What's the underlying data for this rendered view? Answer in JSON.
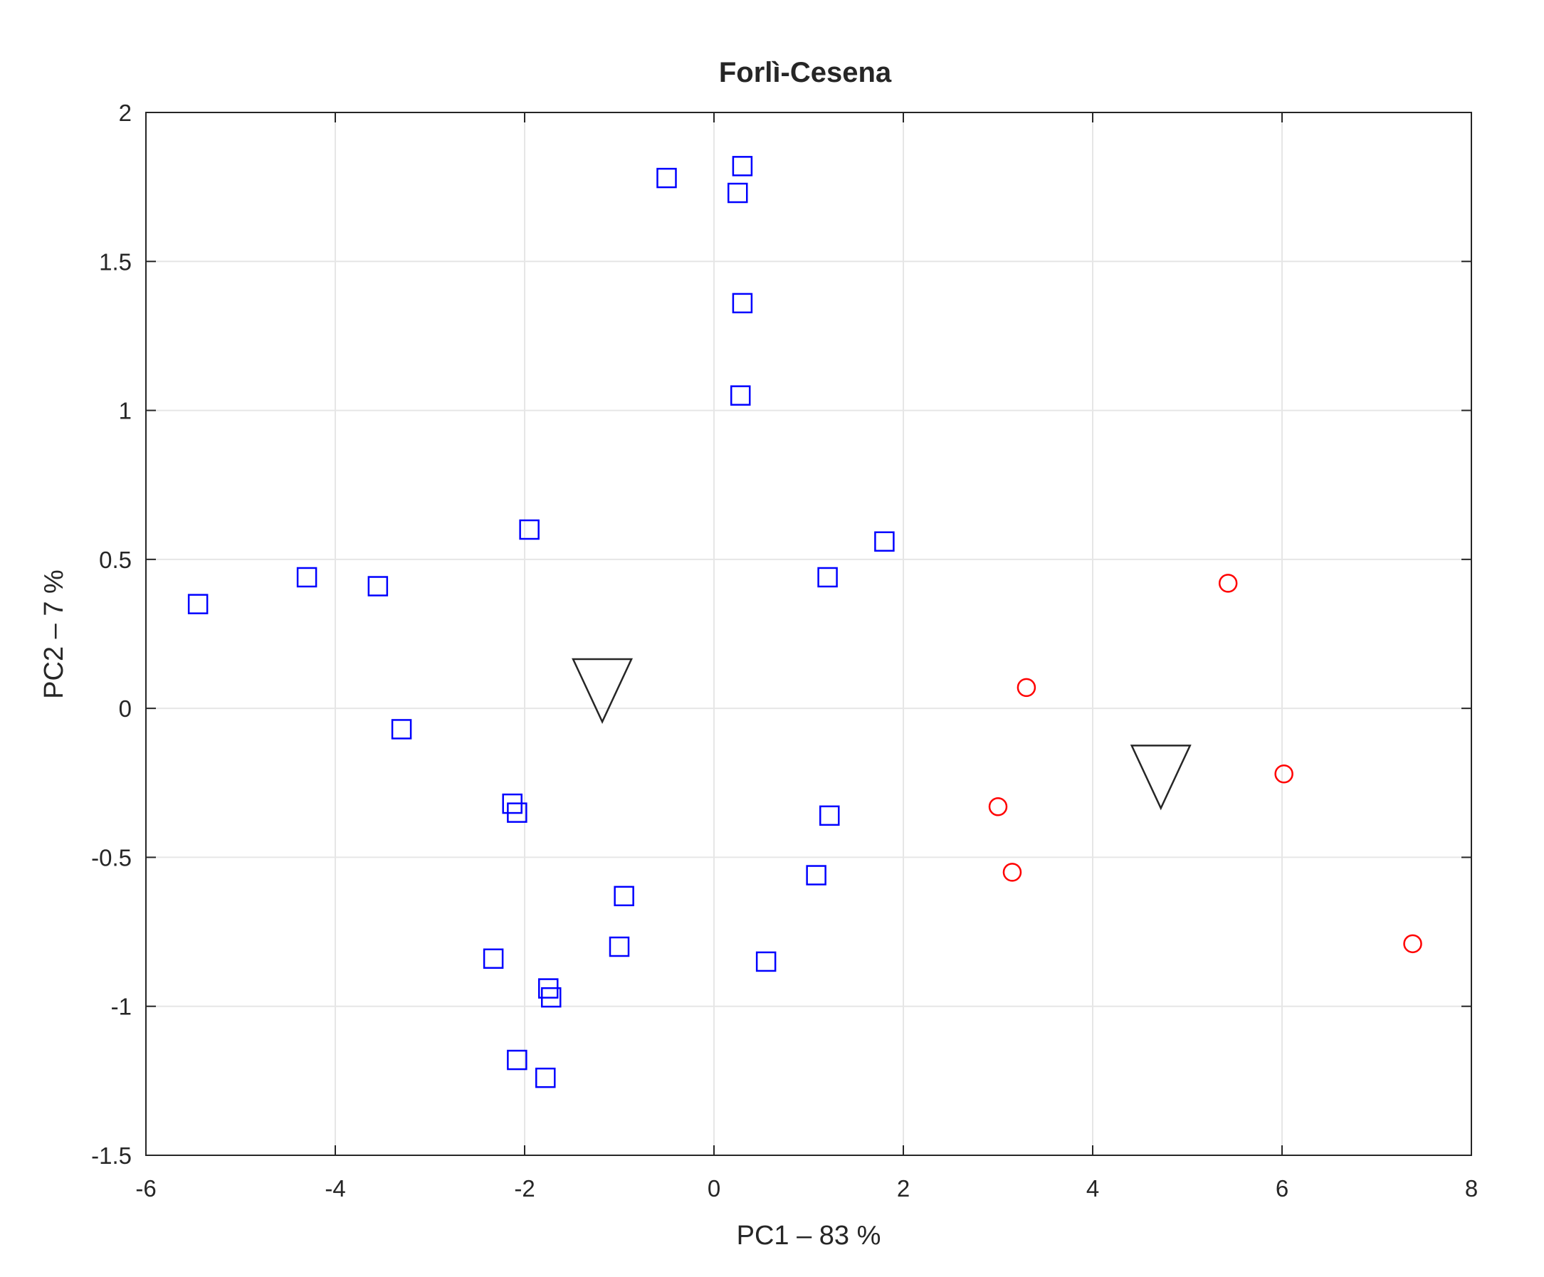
{
  "chart_data": {
    "type": "scatter",
    "title": "Forlì-Cesena",
    "xlabel": "PC1 – 83 %",
    "ylabel": "PC2 – 7 %",
    "xlim": [
      -6,
      8
    ],
    "ylim": [
      -1.5,
      2
    ],
    "xticks": [
      -6,
      -4,
      -2,
      0,
      2,
      4,
      6,
      8
    ],
    "yticks": [
      -1.5,
      -1,
      -0.5,
      0,
      0.5,
      1,
      1.5,
      2
    ],
    "xtick_labels": [
      "-6",
      "-4",
      "-2",
      "0",
      "2",
      "4",
      "6",
      "8"
    ],
    "ytick_labels": [
      "-1.5",
      "-1",
      "-0.5",
      "0",
      "0.5",
      "1",
      "1.5",
      "2"
    ],
    "grid": true,
    "series": [
      {
        "marker": "square",
        "color": "#0000ff",
        "points": [
          [
            -0.5,
            1.78
          ],
          [
            0.3,
            1.82
          ],
          [
            0.25,
            1.73
          ],
          [
            0.3,
            1.36
          ],
          [
            0.28,
            1.05
          ],
          [
            -1.95,
            0.6
          ],
          [
            1.8,
            0.56
          ],
          [
            1.2,
            0.44
          ],
          [
            -4.3,
            0.44
          ],
          [
            -3.55,
            0.41
          ],
          [
            -5.45,
            0.35
          ],
          [
            -3.3,
            -0.07
          ],
          [
            -2.13,
            -0.32
          ],
          [
            -2.08,
            -0.35
          ],
          [
            1.22,
            -0.36
          ],
          [
            1.08,
            -0.56
          ],
          [
            -0.95,
            -0.63
          ],
          [
            -1.0,
            -0.8
          ],
          [
            -2.33,
            -0.84
          ],
          [
            0.55,
            -0.85
          ],
          [
            -1.75,
            -0.94
          ],
          [
            -1.72,
            -0.97
          ],
          [
            -2.08,
            -1.18
          ],
          [
            -1.78,
            -1.24
          ]
        ]
      },
      {
        "marker": "circle",
        "color": "#ff0000",
        "points": [
          [
            5.43,
            0.42
          ],
          [
            3.3,
            0.07
          ],
          [
            6.02,
            -0.22
          ],
          [
            3.0,
            -0.33
          ],
          [
            3.15,
            -0.55
          ],
          [
            7.38,
            -0.79
          ]
        ]
      },
      {
        "marker": "triangle-down",
        "color": "#262626",
        "points": [
          [
            -1.18,
            0.06
          ],
          [
            4.72,
            -0.23
          ]
        ]
      }
    ]
  }
}
